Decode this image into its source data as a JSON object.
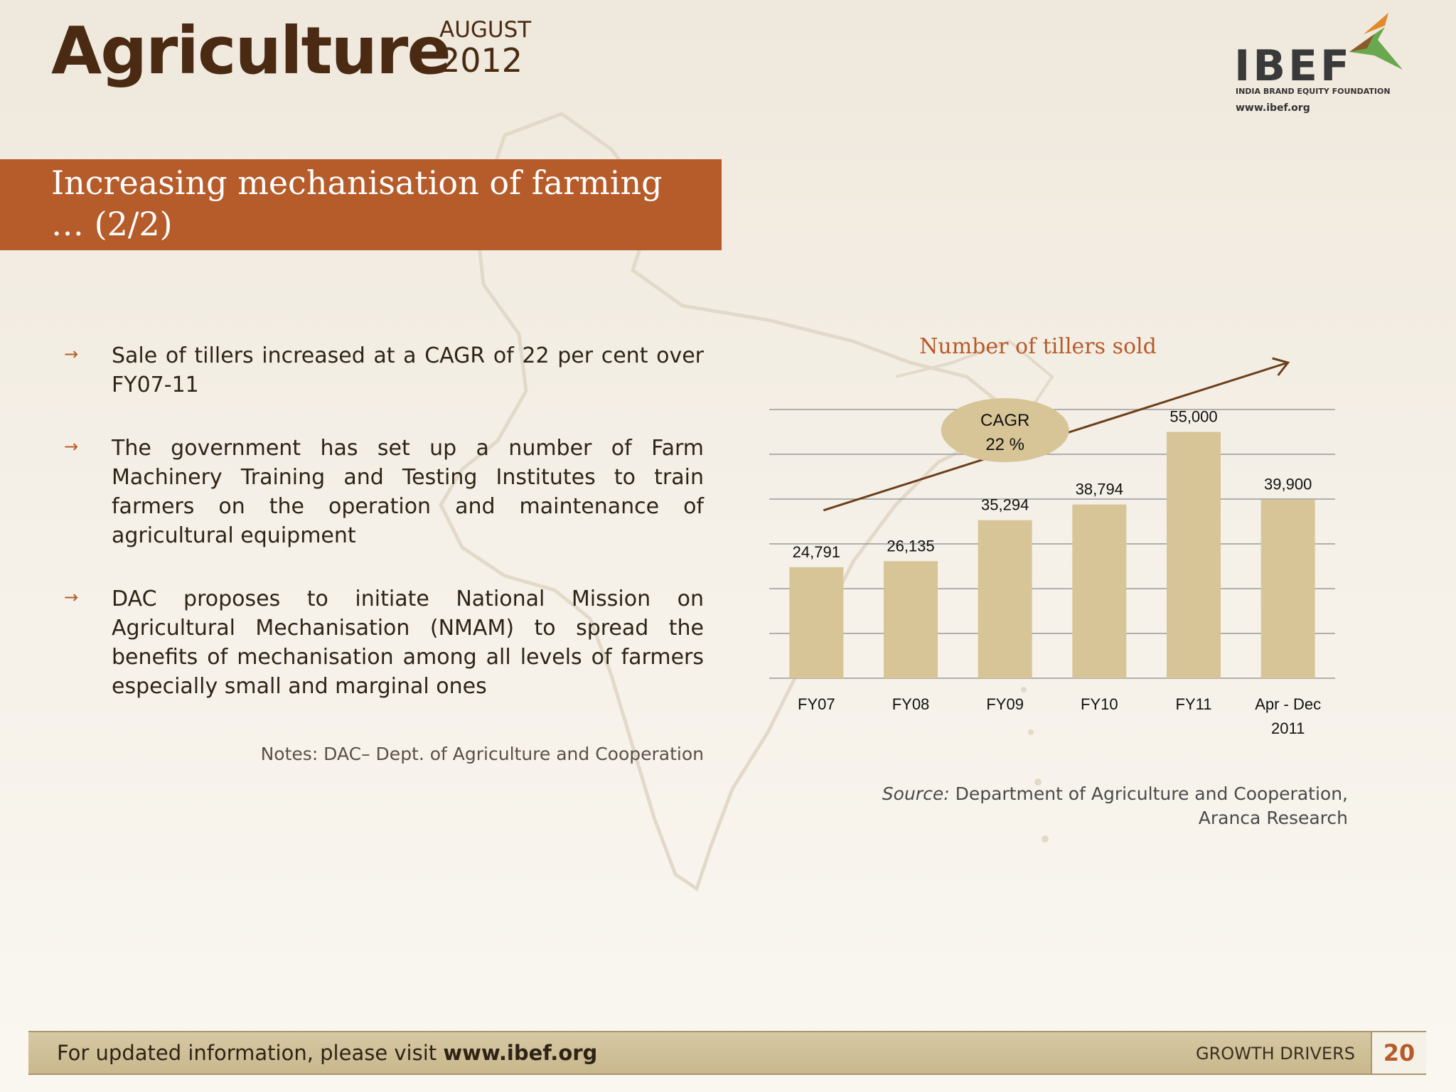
{
  "header": {
    "title": "Agriculture",
    "month": "AUGUST",
    "year": "2012"
  },
  "logo": {
    "name": "IBEF",
    "subtitle": "INDIA BRAND EQUITY FOUNDATION",
    "url": "www.ibef.org"
  },
  "section": {
    "title_line1": "Increasing mechanisation of farming",
    "title_line2": "… (2/2)"
  },
  "bullets": [
    {
      "text": "Sale of tillers increased at a CAGR of 22 per cent over FY07-11"
    },
    {
      "text": "The government has set up a number of Farm Machinery Training and Testing Institutes to train farmers on the operation and maintenance of agricultural equipment"
    },
    {
      "text": "DAC proposes to initiate National Mission on Agricultural Mechanisation (NMAM) to spread the benefits of mechanisation among all levels of farmers especially small and marginal ones"
    }
  ],
  "notes": "Notes: DAC– Dept. of Agriculture and Cooperation",
  "chart_data": {
    "type": "bar",
    "title": "Number of tillers sold",
    "categories": [
      "FY07",
      "FY08",
      "FY09",
      "FY10",
      "FY11",
      "Apr - Dec 2011"
    ],
    "category_lines": [
      [
        "FY07"
      ],
      [
        "FY08"
      ],
      [
        "FY09"
      ],
      [
        "FY10"
      ],
      [
        "FY11"
      ],
      [
        "Apr - Dec",
        "2011"
      ]
    ],
    "values": [
      24791,
      26135,
      35294,
      38794,
      55000,
      39900
    ],
    "value_labels": [
      "24,791",
      "26,135",
      "35,294",
      "38,794",
      "55,000",
      "39,900"
    ],
    "ylim": [
      0,
      60000
    ],
    "grid": true,
    "annotation": {
      "line1": "CAGR",
      "line2": "22 %"
    },
    "bar_color": "#d8c597"
  },
  "source": {
    "label": "Source:",
    "text_line1": "Department of Agriculture and Cooperation,",
    "text_line2": "Aranca Research"
  },
  "footer": {
    "text": "For updated information, please visit ",
    "url": "www.ibef.org",
    "section": "GROWTH DRIVERS",
    "page": "20"
  },
  "colors": {
    "accent": "#b65b2a",
    "title": "#4a2a12"
  }
}
